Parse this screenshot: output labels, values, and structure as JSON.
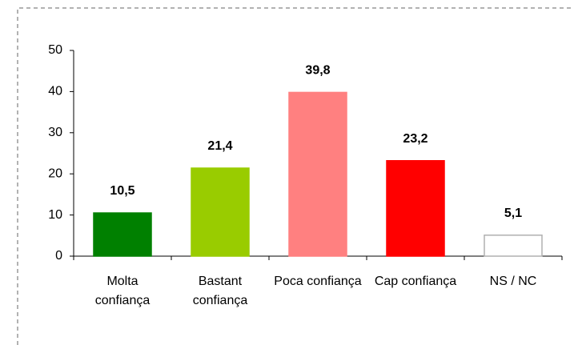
{
  "chart_data": {
    "type": "bar",
    "categories": [
      "Molta confiança",
      "Bastant confiança",
      "Poca confiança",
      "Cap confiança",
      "NS / NC"
    ],
    "values": [
      10.5,
      21.4,
      39.8,
      23.2,
      5.1
    ],
    "value_labels": [
      "10,5",
      "21,4",
      "39,8",
      "23,2",
      "5,1"
    ],
    "colors": [
      "#008000",
      "#99cc00",
      "#ff8080",
      "#ff0000",
      "#ffffff"
    ],
    "ylim": [
      0,
      50
    ],
    "yticks": [
      0,
      10,
      20,
      30,
      40,
      50
    ],
    "grid": false
  }
}
